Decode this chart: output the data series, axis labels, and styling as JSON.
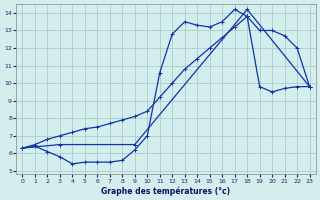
{
  "title": "Graphe des températures (°c)",
  "bg_color": "#d4eeed",
  "grid_color": "#aacccc",
  "line_color": "#1133aa",
  "xlim": [
    -0.5,
    23.5
  ],
  "ylim": [
    4.8,
    14.5
  ],
  "xticks": [
    0,
    1,
    2,
    3,
    4,
    5,
    6,
    7,
    8,
    9,
    10,
    11,
    12,
    13,
    14,
    15,
    16,
    17,
    18,
    19,
    20,
    21,
    22,
    23
  ],
  "yticks": [
    5,
    6,
    7,
    8,
    9,
    10,
    11,
    12,
    13,
    14
  ],
  "curve1_x": [
    0,
    1,
    2,
    3,
    4,
    5,
    6,
    7,
    8,
    9,
    10,
    11,
    12,
    13,
    14,
    15,
    16,
    17,
    18,
    19,
    20,
    21,
    22,
    23
  ],
  "curve1_y": [
    6.3,
    6.4,
    6.1,
    5.8,
    5.4,
    5.5,
    5.5,
    5.5,
    5.6,
    6.2,
    7.0,
    10.6,
    12.8,
    13.5,
    13.3,
    13.2,
    13.5,
    14.2,
    13.8,
    9.8,
    9.5,
    9.7,
    9.8,
    9.8
  ],
  "curve2_x": [
    0,
    1,
    2,
    3,
    4,
    5,
    6,
    7,
    8,
    9,
    10,
    11,
    12,
    13,
    14,
    15,
    16,
    17,
    18,
    19,
    20,
    21,
    22,
    23
  ],
  "curve2_y": [
    6.3,
    6.5,
    6.8,
    7.0,
    7.2,
    7.4,
    7.5,
    7.7,
    7.9,
    8.1,
    8.4,
    9.2,
    10.0,
    10.8,
    11.4,
    12.0,
    12.6,
    13.2,
    13.8,
    13.0,
    13.0,
    12.7,
    12.0,
    9.8
  ],
  "curve3_x": [
    0,
    3,
    9,
    18,
    23
  ],
  "curve3_y": [
    6.3,
    6.5,
    6.5,
    14.2,
    9.8
  ]
}
